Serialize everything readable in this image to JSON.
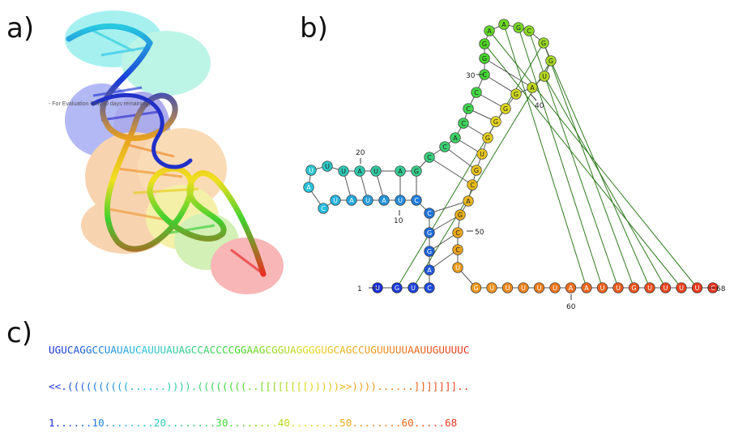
{
  "panels": {
    "a": "a)",
    "b": "b)",
    "c": "c)"
  },
  "watermark_text": "- For Evaluation Only (0 days remaining)",
  "sequence": "UGUCAGGCCUAUAUCAUUUAUAGCCACCCCGGAAGCGGUAGGGGUGCAGCCUGUUUUUAAUUGUUUUC",
  "dot_bracket": "<<.((((((((((......)))).((((((((..[[[[[[[[)))))>>))))......]]]]]]]..",
  "numbering": "1......10........20........30........40........50........60.....68",
  "nucleotide_labels": {
    "start": "1",
    "n10": "10",
    "n20": "20",
    "n30": "30",
    "n40": "40",
    "n50": "50",
    "n60": "60",
    "end": "68"
  },
  "colors": {
    "blue": "#1a2fd6",
    "cyan": "#27c3dd",
    "green": "#46d82a",
    "yellow": "#e6d820",
    "orange": "#ec8c1e",
    "red": "#e8321e",
    "pseudoknot_line": "#2f7a1e"
  }
}
